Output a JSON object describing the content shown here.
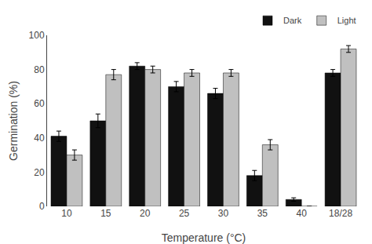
{
  "chart_data": {
    "type": "bar",
    "xlabel": "Temperature (°C)",
    "ylabel": "Germination (%)",
    "categories": [
      "10",
      "15",
      "20",
      "25",
      "30",
      "35",
      "40",
      "18/28"
    ],
    "series": [
      {
        "name": "Dark",
        "color": "#111111",
        "values": [
          41,
          50,
          82,
          70,
          66,
          18,
          4,
          78
        ],
        "errors": [
          3,
          4,
          2,
          3,
          3,
          3,
          1,
          2
        ]
      },
      {
        "name": "Light",
        "color": "#c0c0c0",
        "values": [
          30,
          77,
          80,
          78,
          78,
          36,
          0,
          92
        ],
        "errors": [
          3,
          3,
          2,
          2,
          2,
          3,
          0,
          2
        ]
      }
    ],
    "ylim": [
      0,
      100
    ],
    "yticks": [
      0,
      20,
      40,
      60,
      80,
      100
    ],
    "grid": false,
    "legend": "upper right"
  }
}
